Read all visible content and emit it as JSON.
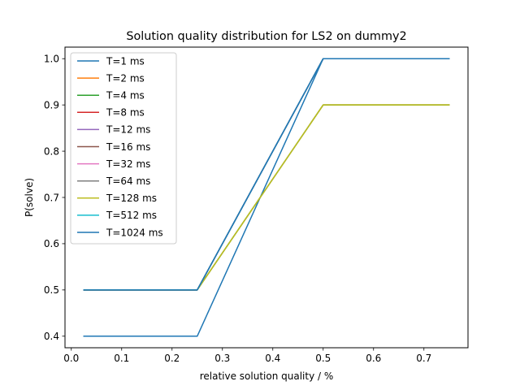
{
  "chart_data": {
    "type": "line",
    "title": "Solution quality distribution for LS2 on dummy2",
    "xlabel": "relative solution quality / %",
    "ylabel": "P(solve)",
    "xlim": [
      -0.0125,
      0.7875
    ],
    "ylim": [
      0.375,
      1.025
    ],
    "xticks": [
      0.0,
      0.1,
      0.2,
      0.3,
      0.4,
      0.5,
      0.6,
      0.7
    ],
    "xtick_labels": [
      "0.0",
      "0.1",
      "0.2",
      "0.3",
      "0.4",
      "0.5",
      "0.6",
      "0.7"
    ],
    "yticks": [
      0.4,
      0.5,
      0.6,
      0.7,
      0.8,
      0.9,
      1.0
    ],
    "ytick_labels": [
      "0.4",
      "0.5",
      "0.6",
      "0.7",
      "0.8",
      "0.9",
      "1.0"
    ],
    "grid": false,
    "legend_position": "top-left",
    "x": [
      0.025,
      0.25,
      0.5,
      0.75
    ],
    "series": [
      {
        "name": "T=1 ms",
        "color": "#1f77b4",
        "values": [
          0.4,
          0.4,
          1.0,
          1.0
        ]
      },
      {
        "name": "T=2 ms",
        "color": "#ff7f0e",
        "values": [
          0.5,
          0.5,
          0.9,
          0.9
        ]
      },
      {
        "name": "T=4 ms",
        "color": "#2ca02c",
        "values": [
          0.5,
          0.5,
          0.9,
          0.9
        ]
      },
      {
        "name": "T=8 ms",
        "color": "#d62728",
        "values": [
          0.5,
          0.5,
          1.0,
          1.0
        ]
      },
      {
        "name": "T=12 ms",
        "color": "#9467bd",
        "values": [
          0.5,
          0.5,
          1.0,
          1.0
        ]
      },
      {
        "name": "T=16 ms",
        "color": "#8c564b",
        "values": [
          0.5,
          0.5,
          1.0,
          1.0
        ]
      },
      {
        "name": "T=32 ms",
        "color": "#e377c2",
        "values": [
          0.5,
          0.5,
          1.0,
          1.0
        ]
      },
      {
        "name": "T=64 ms",
        "color": "#7f7f7f",
        "values": [
          0.5,
          0.5,
          1.0,
          1.0
        ]
      },
      {
        "name": "T=128 ms",
        "color": "#bcbd22",
        "values": [
          0.5,
          0.5,
          0.9,
          0.9
        ]
      },
      {
        "name": "T=512 ms",
        "color": "#17becf",
        "values": [
          0.5,
          0.5,
          1.0,
          1.0
        ]
      },
      {
        "name": "T=1024 ms",
        "color": "#1f77b4",
        "values": [
          0.5,
          0.5,
          1.0,
          1.0
        ]
      }
    ]
  }
}
